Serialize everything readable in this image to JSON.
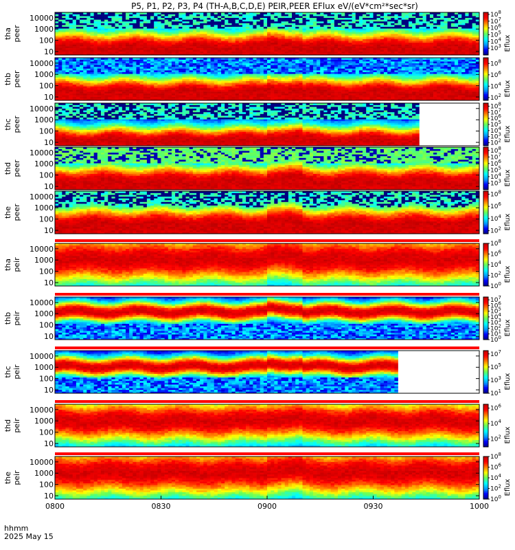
{
  "chart_data": {
    "type": "heatmap",
    "title": "P5, P1, P2, P3, P4 (TH-A,B,C,D,E) PEIR,PEER EFlux eV/(eV*cm²*sec*sr)",
    "x_axis": {
      "label": "hhmm",
      "date": "2025 May 15",
      "ticks": [
        "0800",
        "0830",
        "0900",
        "0930",
        "1000"
      ],
      "range": [
        "0800",
        "1000"
      ]
    },
    "y_axis": {
      "scale": "log",
      "ticks": [
        "10",
        "100",
        "1000",
        "10000"
      ],
      "range": [
        5,
        30000
      ]
    },
    "colorbar_label": "Eflux",
    "colormap": [
      "#000080",
      "#0000ff",
      "#00a0ff",
      "#00ffff",
      "#60ff60",
      "#ffff00",
      "#ff8000",
      "#ff0000",
      "#c00000"
    ],
    "panels": [
      {
        "probe": "tha",
        "species": "peer",
        "cb_exponents": [
          "3",
          "4",
          "5",
          "6",
          "7",
          "8"
        ],
        "cb_range": [
          2,
          8.3
        ],
        "peak_energy": 20,
        "width_decades": 1.2,
        "noise": "black",
        "data_end": "1000"
      },
      {
        "probe": "thb",
        "species": "peer",
        "cb_exponents": [
          "2",
          "4",
          "6",
          "8"
        ],
        "cb_range": [
          1.5,
          9
        ],
        "peak_energy": 25,
        "width_decades": 1.1,
        "noise": "blue",
        "data_end": "1000"
      },
      {
        "probe": "thc",
        "species": "peer",
        "cb_exponents": [
          "2",
          "3",
          "4",
          "5",
          "6",
          "7",
          "8"
        ],
        "cb_range": [
          1.5,
          8.5
        ],
        "peak_energy": 15,
        "width_decades": 1.0,
        "noise": "dark",
        "data_end": "0943"
      },
      {
        "probe": "thd",
        "species": "peer",
        "cb_exponents": [
          "3",
          "4",
          "5",
          "6",
          "7",
          "8"
        ],
        "cb_range": [
          2,
          8.5
        ],
        "peak_energy": 25,
        "width_decades": 1.2,
        "noise": "green",
        "data_end": "1000"
      },
      {
        "probe": "the",
        "species": "peer",
        "cb_exponents": [
          "2",
          "4",
          "6",
          "8"
        ],
        "cb_range": [
          1.5,
          8.5
        ],
        "peak_energy": 30,
        "width_decades": 1.3,
        "noise": "black",
        "data_end": "1000"
      },
      {
        "probe": "tha",
        "species": "peir",
        "cb_exponents": [
          "0",
          "2",
          "4",
          "6",
          "8"
        ],
        "cb_range": [
          0,
          8
        ],
        "peak_energy": 1200,
        "width_decades": 1.8,
        "noise": "none",
        "data_end": "1000"
      },
      {
        "probe": "thb",
        "species": "peir",
        "cb_exponents": [
          "0",
          "1",
          "2",
          "3",
          "4",
          "5",
          "6",
          "7"
        ],
        "cb_range": [
          0,
          7.5
        ],
        "peak_energy": 1500,
        "width_decades": 0.7,
        "noise": "blue-low",
        "data_end": "1000"
      },
      {
        "probe": "thc",
        "species": "peir",
        "cb_exponents": [
          "1",
          "3",
          "5",
          "7"
        ],
        "cb_range": [
          1,
          7.5
        ],
        "peak_energy": 1200,
        "width_decades": 0.7,
        "noise": "blue-low",
        "data_end": "0937"
      },
      {
        "probe": "thd",
        "species": "peir",
        "cb_exponents": [
          "2",
          "4",
          "6"
        ],
        "cb_range": [
          1,
          6.5
        ],
        "peak_energy": 1000,
        "width_decades": 1.6,
        "noise": "none",
        "data_end": "1000"
      },
      {
        "probe": "the",
        "species": "peir",
        "cb_exponents": [
          "0",
          "2",
          "4",
          "6",
          "8"
        ],
        "cb_range": [
          0,
          8
        ],
        "peak_energy": 1200,
        "width_decades": 1.8,
        "noise": "none",
        "data_end": "1000"
      }
    ]
  }
}
